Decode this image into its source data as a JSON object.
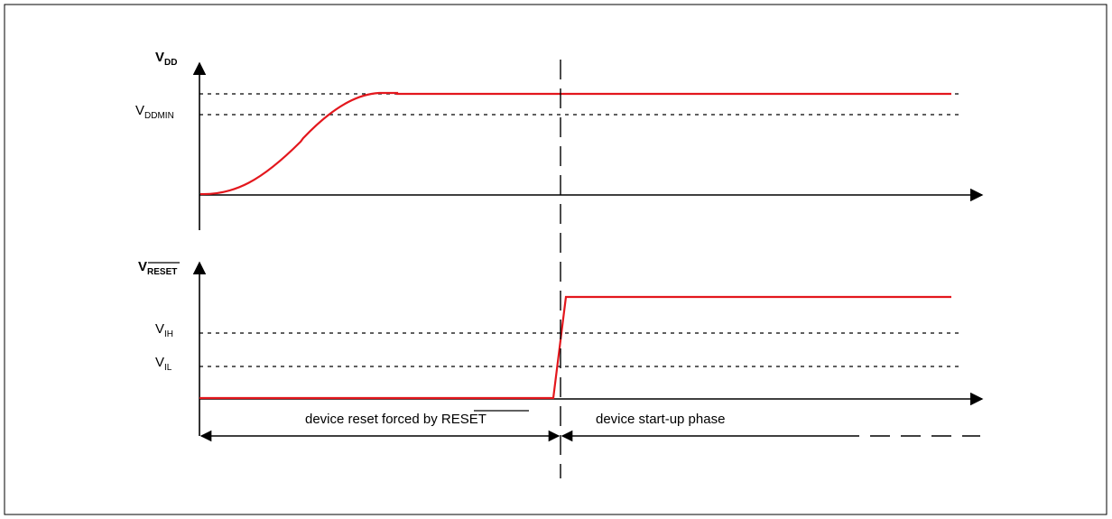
{
  "top_plot": {
    "axis_main": "V",
    "axis_sub": "DD",
    "levels": [
      {
        "main": "V",
        "sub": "DDMIN"
      }
    ]
  },
  "bottom_plot": {
    "axis_main": "V",
    "axis_sub": "RESET",
    "levels": [
      {
        "main": "V",
        "sub": "IH"
      },
      {
        "main": "V",
        "sub": "IL"
      }
    ]
  },
  "phases": {
    "reset_phase_text": "device reset forced by ",
    "reset_phase_signal": "RESET",
    "startup_phase_text": "device start-up phase"
  },
  "colors": {
    "signal": "#e3171d",
    "axis": "#000000",
    "frame": "#000000"
  }
}
